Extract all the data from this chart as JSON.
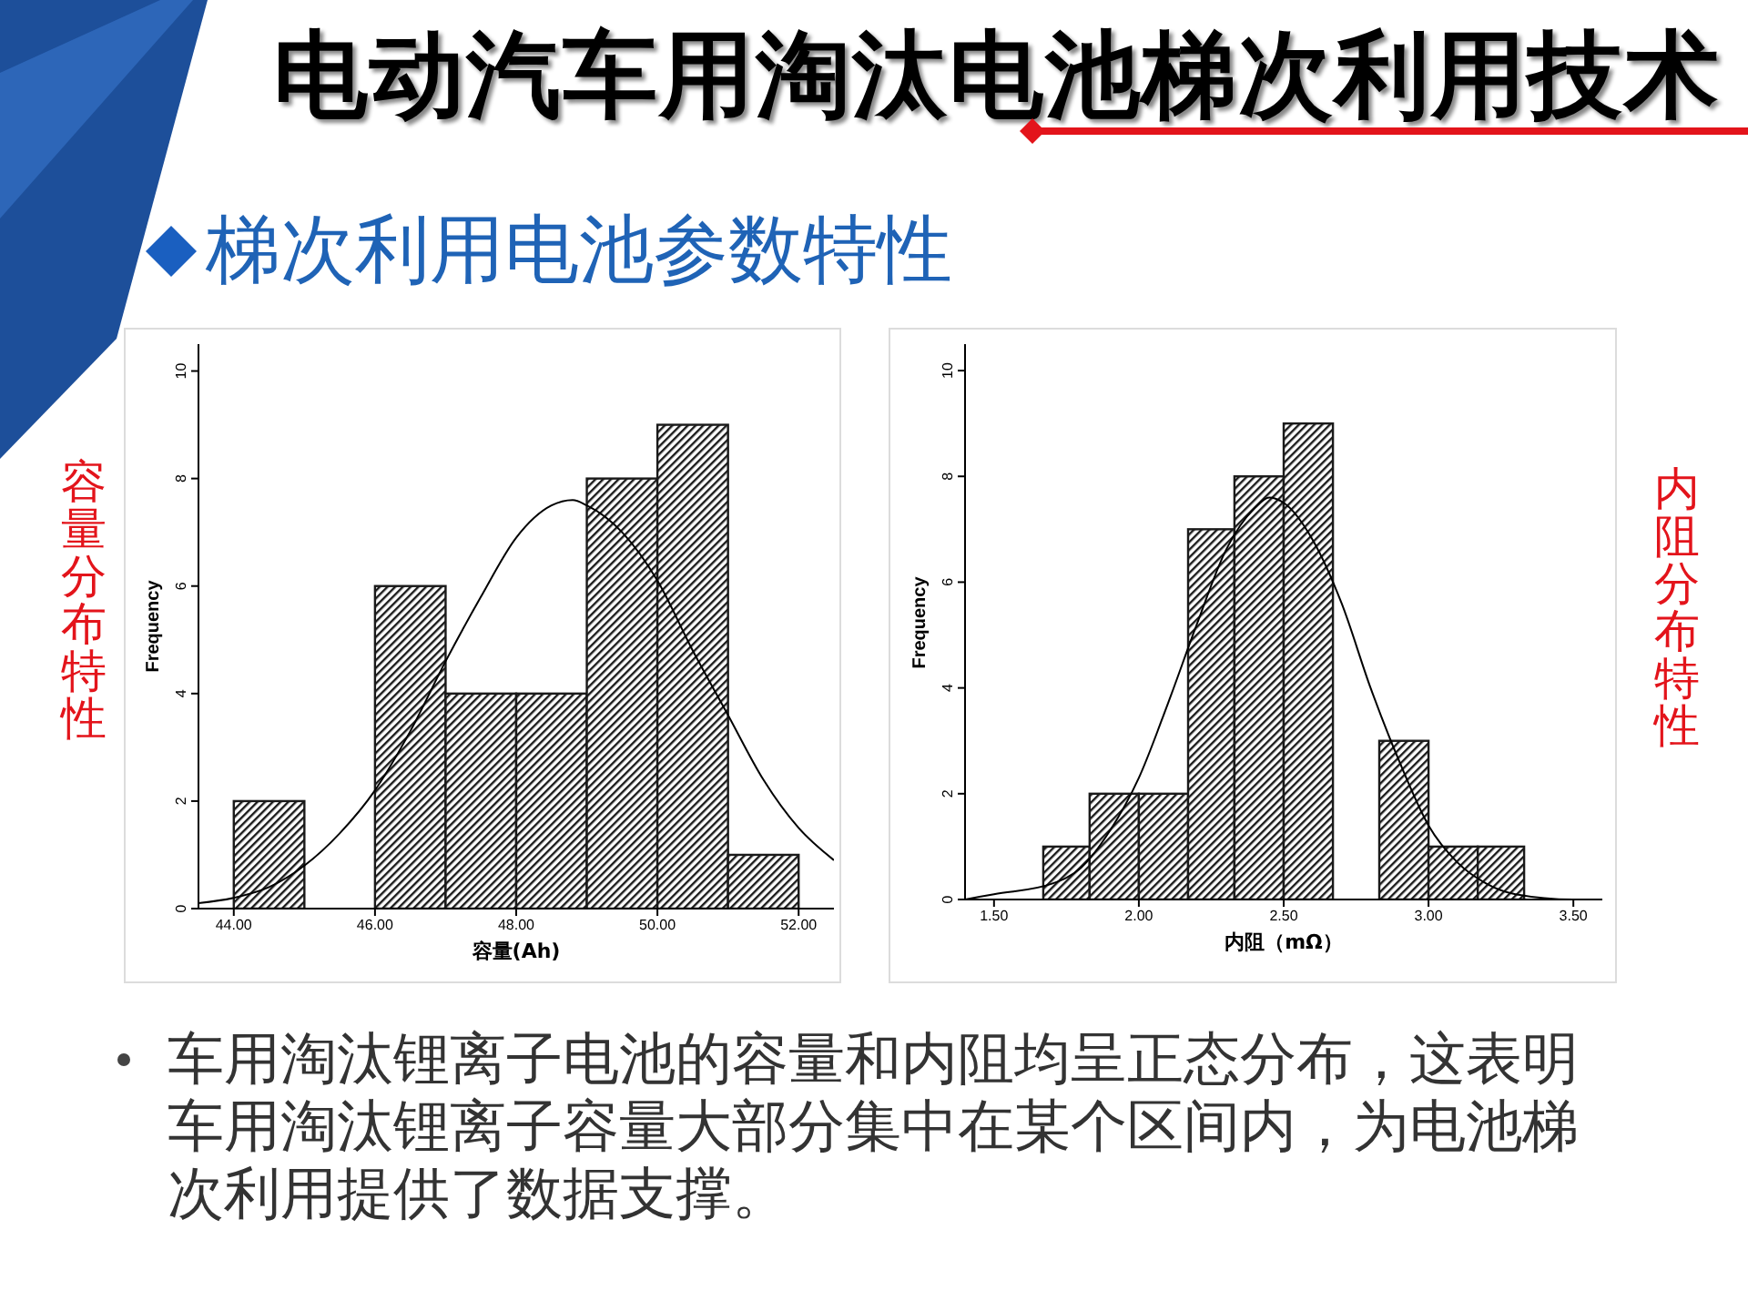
{
  "chart_data": [
    {
      "type": "histogram",
      "title": "电动汽车用淘汰电池梯次利用技术",
      "subtitle": "梯次利用电池参数特性",
      "xlabel": "容量(Ah)",
      "ylabel": "Frequency",
      "bins": [
        44,
        45,
        46,
        47,
        48,
        49,
        50,
        51,
        52
      ],
      "series": [
        {
          "color": "#1a1a1a",
          "values": [
            2,
            0,
            6,
            4,
            4,
            8,
            9,
            1
          ]
        },
        {
          "type": "line",
          "color": "#000000",
          "x": [
            43.5,
            44,
            44.5,
            45,
            45.5,
            46,
            46.5,
            47,
            47.5,
            48,
            48.5,
            48.8,
            49,
            49.5,
            50,
            50.5,
            51,
            51.5,
            52,
            52.5
          ],
          "values": [
            0.1,
            0.2,
            0.4,
            0.8,
            1.4,
            2.2,
            3.3,
            4.6,
            5.8,
            6.9,
            7.5,
            7.6,
            7.5,
            7.0,
            6.1,
            4.8,
            3.6,
            2.4,
            1.5,
            0.9
          ]
        }
      ],
      "xlim": [
        43.5,
        52.5
      ],
      "xticks": [
        {
          "value": 44,
          "label": "44.00"
        },
        {
          "value": 46,
          "label": "46.00"
        },
        {
          "value": 48,
          "label": "48.00"
        },
        {
          "value": 50,
          "label": "50.00"
        },
        {
          "value": 52,
          "label": "52.00"
        }
      ],
      "ylim": [
        0,
        10.5
      ],
      "yticks": [
        0,
        2,
        4,
        6,
        8,
        10
      ],
      "annotations": [
        "容量分布特性",
        "车用淘汰锂离子电池的容量和内阻均呈正态分布，这表明车用淘汰锂离子容量大部分集中在某个区间内，为电池梯次利用提供了数据支撑。"
      ]
    },
    {
      "type": "histogram",
      "xlabel": "内阻（mΩ）",
      "ylabel": "Frequency",
      "bins": [
        1.67,
        1.83,
        2.0,
        2.17,
        2.33,
        2.5,
        2.67,
        2.83,
        3.0,
        3.17,
        3.33
      ],
      "series": [
        {
          "color": "#1a1a1a",
          "values": [
            1,
            2,
            2,
            7,
            8,
            9,
            0,
            3,
            1,
            1
          ]
        },
        {
          "type": "line",
          "color": "#000000",
          "x": [
            1.4,
            1.5,
            1.7,
            1.8,
            1.9,
            2.0,
            2.1,
            2.2,
            2.3,
            2.4,
            2.45,
            2.5,
            2.6,
            2.7,
            2.8,
            2.9,
            3.0,
            3.1,
            3.2,
            3.3,
            3.5,
            3.6
          ],
          "values": [
            0,
            0.1,
            0.3,
            0.6,
            1.3,
            2.3,
            3.7,
            5.2,
            6.6,
            7.4,
            7.6,
            7.5,
            6.8,
            5.6,
            4.0,
            2.6,
            1.4,
            0.7,
            0.3,
            0.1,
            0,
            0
          ]
        }
      ],
      "xlim": [
        1.4,
        3.6
      ],
      "xticks": [
        {
          "value": 1.5,
          "label": "1.50"
        },
        {
          "value": 2.0,
          "label": "2.00"
        },
        {
          "value": 2.5,
          "label": "2.50"
        },
        {
          "value": 3.0,
          "label": "3.00"
        },
        {
          "value": 3.5,
          "label": "3.50"
        }
      ],
      "ylim": [
        0,
        10.5
      ],
      "yticks": [
        0,
        2,
        4,
        6,
        8,
        10
      ],
      "annotations": [
        "内阻分布特性"
      ]
    }
  ]
}
